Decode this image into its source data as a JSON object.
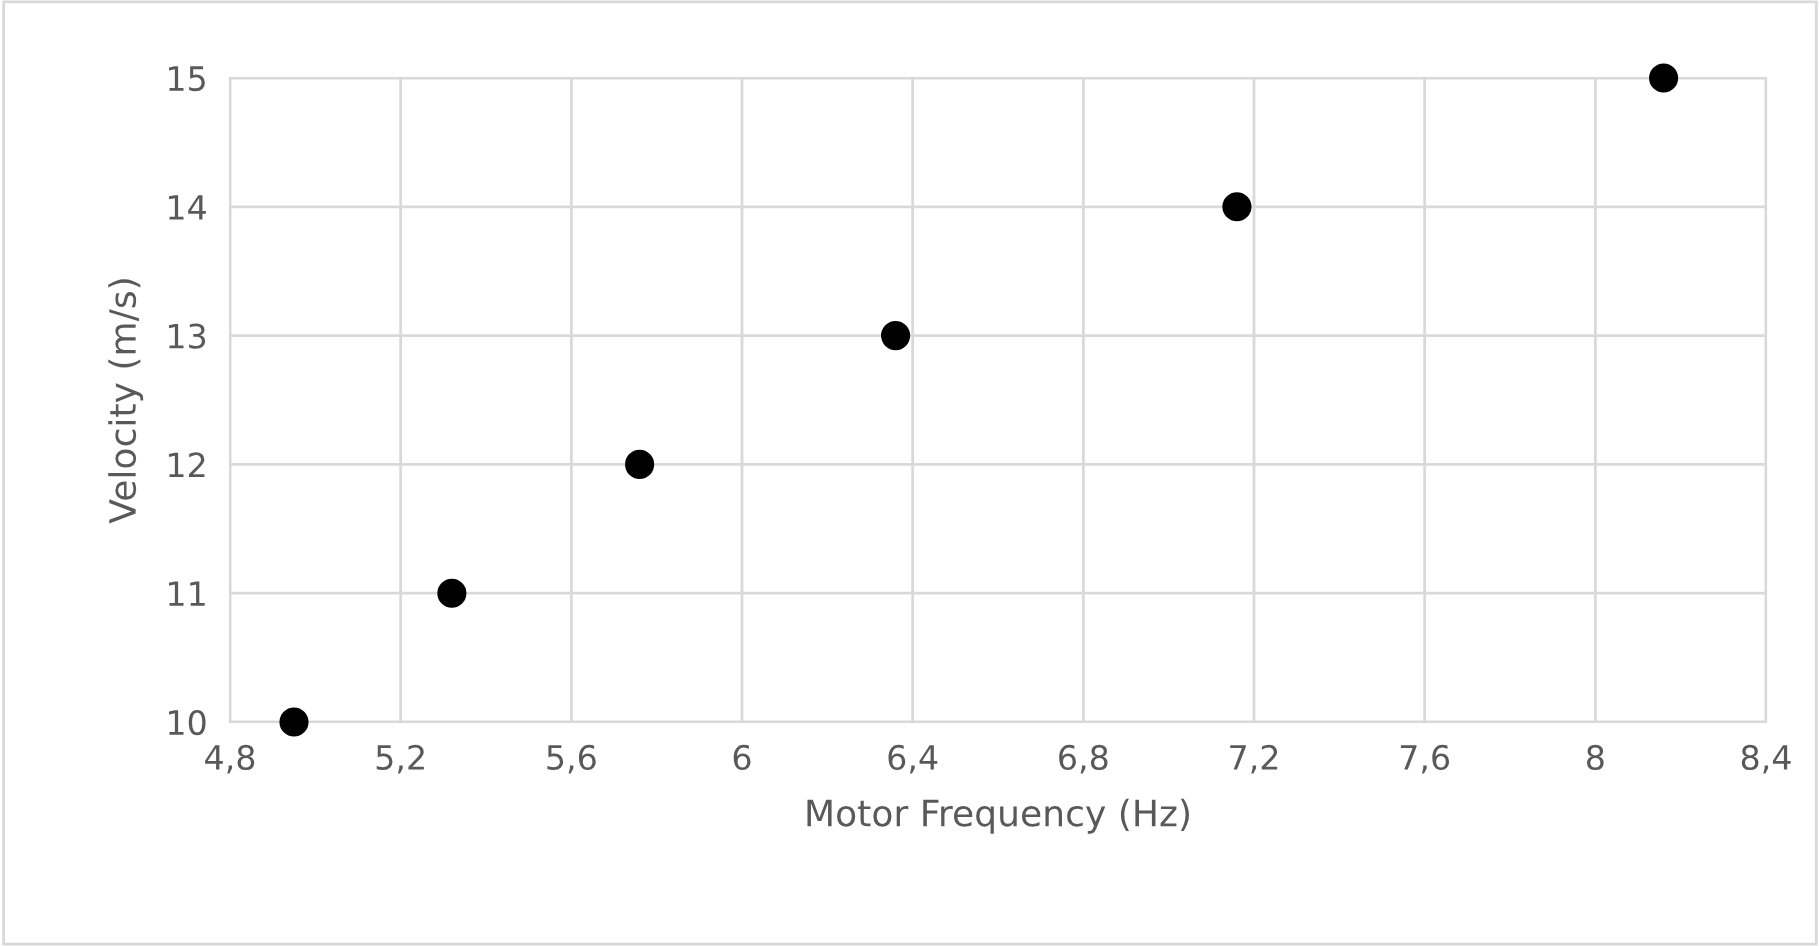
{
  "chart_data": {
    "type": "scatter",
    "xlabel": "Motor Frequency (Hz)",
    "ylabel": "Velocity (m/s)",
    "x": [
      4.95,
      5.32,
      5.76,
      6.36,
      7.16,
      8.16
    ],
    "series": [
      {
        "color": "#000000",
        "values": [
          10,
          11,
          12,
          13,
          14,
          15
        ]
      }
    ],
    "xlim": [
      4.8,
      8.4
    ],
    "ylim": [
      10,
      15
    ],
    "xticks": [
      {
        "value": 4.8,
        "label": "4,8"
      },
      {
        "value": 5.2,
        "label": "5,2"
      },
      {
        "value": 5.6,
        "label": "5,6"
      },
      6,
      {
        "value": 6.4,
        "label": "6,4"
      },
      {
        "value": 6.8,
        "label": "6,8"
      },
      {
        "value": 7.2,
        "label": "7,2"
      },
      {
        "value": 7.6,
        "label": "7,6"
      },
      8,
      {
        "value": 8.4,
        "label": "8,4"
      }
    ],
    "yticks": [
      10,
      11,
      12,
      13,
      14,
      15
    ],
    "grid": true,
    "marker": "circle"
  }
}
